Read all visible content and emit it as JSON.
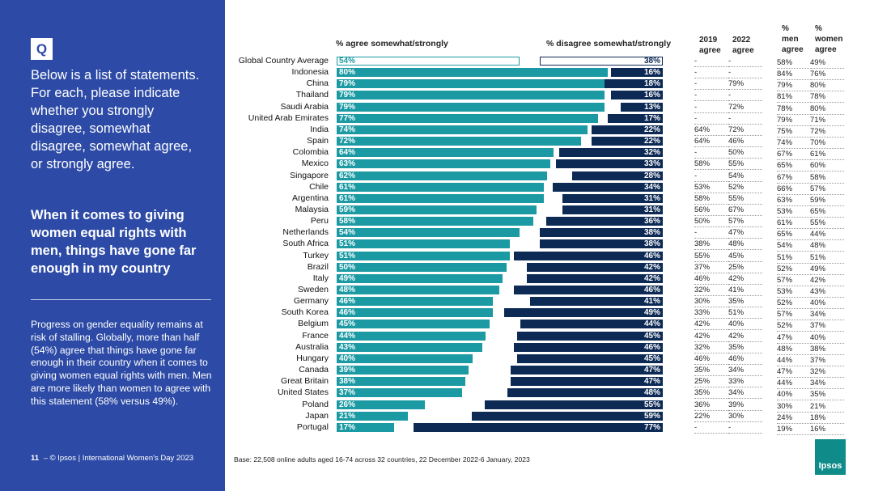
{
  "sidebar": {
    "q_badge": "Q",
    "question": "Below is a list of statements. For each, please indicate whether you strongly disagree, somewhat disagree, somewhat agree, or strongly agree.",
    "statement": "When it comes to giving women equal rights with men, things have gone far enough in my country",
    "progress": "Progress on gender equality remains at risk of stalling. Globally, more than half (54%) agree that things have gone far enough in their country when it comes to giving women equal rights with men. Men are more likely than women to agree with this statement (58% versus 49%).",
    "page_number": "11",
    "footer_text": "– © Ipsos | International Women's Day 2023"
  },
  "base_note": "Base: 22,508 online adults aged 16-74 across 32 countries, 22 December 2022-6 January, 2023",
  "logo_text": "Ipsos",
  "colors": {
    "agree": "#1b9aa3",
    "disagree": "#0d2a55",
    "sidebar": "#2d4ba6"
  },
  "chart_data": {
    "type": "bar",
    "orientation": "horizontal-diverging",
    "agree_label": "% agree somewhat/strongly",
    "disagree_label": "% disagree somewhat/strongly",
    "table_headers": {
      "y2019": "2019\nagree",
      "y2022": "2022\nagree",
      "men": "%\nmen\nagree",
      "women": "%\nwomen\nagree"
    },
    "categories": [
      "Global Country Average",
      "Indonesia",
      "China",
      "Thailand",
      "Saudi Arabia",
      "United Arab Emirates",
      "India",
      "Spain",
      "Colombia",
      "Mexico",
      "Singapore",
      "Chile",
      "Argentina",
      "Malaysia",
      "Peru",
      "Netherlands",
      "South Africa",
      "Turkey",
      "Brazil",
      "Italy",
      "Sweden",
      "Germany",
      "South Korea",
      "Belgium",
      "France",
      "Australia",
      "Hungary",
      "Canada",
      "Great Britain",
      "United States",
      "Poland",
      "Japan",
      "Portugal"
    ],
    "agree": [
      54,
      80,
      79,
      79,
      79,
      77,
      74,
      72,
      64,
      63,
      62,
      61,
      61,
      59,
      58,
      54,
      51,
      51,
      50,
      49,
      48,
      46,
      46,
      45,
      44,
      43,
      40,
      39,
      38,
      37,
      26,
      21,
      17
    ],
    "disagree": [
      38,
      16,
      18,
      16,
      13,
      17,
      22,
      22,
      32,
      33,
      28,
      34,
      31,
      31,
      36,
      38,
      38,
      46,
      42,
      42,
      46,
      41,
      49,
      44,
      45,
      46,
      45,
      47,
      47,
      48,
      55,
      59,
      77
    ],
    "agree_2019": [
      "-",
      "-",
      "-",
      "-",
      "-",
      "-",
      "64%",
      "64%",
      "-",
      "58%",
      "-",
      "53%",
      "58%",
      "56%",
      "50%",
      "-",
      "38%",
      "55%",
      "37%",
      "46%",
      "32%",
      "30%",
      "33%",
      "42%",
      "42%",
      "32%",
      "46%",
      "35%",
      "25%",
      "35%",
      "36%",
      "22%",
      "-"
    ],
    "agree_2022": [
      "-",
      "-",
      "79%",
      "-",
      "72%",
      "-",
      "72%",
      "46%",
      "50%",
      "55%",
      "54%",
      "52%",
      "55%",
      "67%",
      "57%",
      "47%",
      "48%",
      "45%",
      "25%",
      "42%",
      "41%",
      "35%",
      "51%",
      "40%",
      "42%",
      "35%",
      "46%",
      "34%",
      "33%",
      "34%",
      "39%",
      "30%",
      "-"
    ],
    "men_agree": [
      "58%",
      "84%",
      "79%",
      "81%",
      "78%",
      "79%",
      "75%",
      "74%",
      "67%",
      "65%",
      "67%",
      "66%",
      "63%",
      "53%",
      "61%",
      "65%",
      "54%",
      "51%",
      "52%",
      "57%",
      "53%",
      "52%",
      "57%",
      "52%",
      "47%",
      "48%",
      "44%",
      "47%",
      "44%",
      "40%",
      "30%",
      "24%",
      "19%"
    ],
    "women_agree": [
      "49%",
      "76%",
      "80%",
      "78%",
      "80%",
      "71%",
      "72%",
      "70%",
      "61%",
      "60%",
      "58%",
      "57%",
      "59%",
      "65%",
      "55%",
      "44%",
      "48%",
      "51%",
      "49%",
      "42%",
      "43%",
      "40%",
      "34%",
      "37%",
      "40%",
      "38%",
      "37%",
      "32%",
      "34%",
      "35%",
      "21%",
      "18%",
      "16%"
    ],
    "xlim": [
      0,
      100
    ]
  }
}
